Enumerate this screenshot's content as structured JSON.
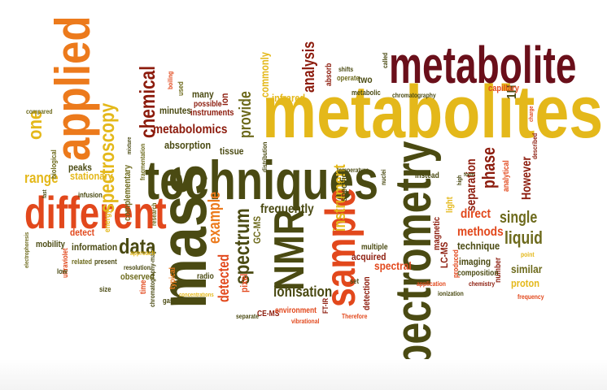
{
  "cloud": {
    "colors": {
      "dark_olive": "#4a4a12",
      "olive": "#6d6a1c",
      "gold": "#e4b81a",
      "orange": "#ec7a1c",
      "red_orange": "#e2481c",
      "dark_red": "#8c1b0c",
      "maroon": "#6a0f1a"
    },
    "words": [
      {
        "text": "metabolites",
        "color": "#e4b81a"
      },
      {
        "text": "techniques",
        "color": "#4a4a12"
      },
      {
        "text": "mass",
        "color": "#4a4a12"
      },
      {
        "text": "spectrometry",
        "color": "#4a4a12"
      },
      {
        "text": "metabolite",
        "color": "#6a0f1a"
      },
      {
        "text": "different",
        "color": "#e2481c"
      },
      {
        "text": "applied",
        "color": "#ec7a1c"
      },
      {
        "text": "sample",
        "color": "#e2481c"
      },
      {
        "text": "NMR",
        "color": "#4a4a12"
      },
      {
        "text": "spectroscopy",
        "color": "#e4b81a"
      },
      {
        "text": "chemical",
        "color": "#8c1b0c"
      },
      {
        "text": "spectrum",
        "color": "#4a4a12"
      },
      {
        "text": "data",
        "color": "#4a4a12"
      },
      {
        "text": "one",
        "color": "#e4b81a"
      },
      {
        "text": "range",
        "color": "#e4b81a"
      },
      {
        "text": "metabolomics",
        "color": "#8c1b0c"
      },
      {
        "text": "instrument",
        "color": "#e4b81a"
      },
      {
        "text": "analysis",
        "color": "#8c1b0c"
      },
      {
        "text": "provide",
        "color": "#6d6a1c"
      },
      {
        "text": "liquid",
        "color": "#6d6a1c"
      },
      {
        "text": "single",
        "color": "#6d6a1c"
      },
      {
        "text": "phase",
        "color": "#8c1b0c"
      },
      {
        "text": "separation",
        "color": "#8c1b0c"
      },
      {
        "text": "However",
        "color": "#8c1b0c"
      },
      {
        "text": "example",
        "color": "#ec7a1c"
      },
      {
        "text": "frequently",
        "color": "#4a4a12"
      },
      {
        "text": "ionisation",
        "color": "#4a4a12"
      },
      {
        "text": "detected",
        "color": "#e2481c"
      },
      {
        "text": "complementary",
        "color": "#6d6a1c"
      },
      {
        "text": "stationary",
        "color": "#e4b81a"
      },
      {
        "text": "absorption",
        "color": "#4a4a12"
      },
      {
        "text": "methods",
        "color": "#e2481c"
      },
      {
        "text": "direct",
        "color": "#e2481c"
      },
      {
        "text": "technique",
        "color": "#4a4a12"
      },
      {
        "text": "spectral",
        "color": "#e2481c"
      },
      {
        "text": "acquired",
        "color": "#8c1b0c"
      },
      {
        "text": "imaging",
        "color": "#4a4a12"
      },
      {
        "text": "similar",
        "color": "#6d6a1c"
      },
      {
        "text": "proton",
        "color": "#e4b81a"
      },
      {
        "text": "infrared",
        "color": "#e4b81a"
      },
      {
        "text": "commonly",
        "color": "#e4b81a"
      },
      {
        "text": "peaks",
        "color": "#4a4a12"
      },
      {
        "text": "detect",
        "color": "#e2481c"
      },
      {
        "text": "information",
        "color": "#4a4a12"
      },
      {
        "text": "mobility",
        "color": "#4a4a12"
      },
      {
        "text": "observed",
        "color": "#6d6a1c"
      },
      {
        "text": "pixel",
        "color": "#e2481c"
      },
      {
        "text": "GC-MS",
        "color": "#6d6a1c"
      },
      {
        "text": "CE-MS",
        "color": "#8c1b0c"
      },
      {
        "text": "LC-MS",
        "color": "#8c1b0c"
      },
      {
        "text": "environment",
        "color": "#e2481c"
      },
      {
        "text": "detection",
        "color": "#8c1b0c"
      },
      {
        "text": "tissue",
        "color": "#4a4a12"
      },
      {
        "text": "minutes",
        "color": "#4a4a12"
      },
      {
        "text": "instruments",
        "color": "#8c1b0c"
      },
      {
        "text": "possible",
        "color": "#8c1b0c"
      },
      {
        "text": "many",
        "color": "#4a4a12"
      },
      {
        "text": "ion",
        "color": "#8c1b0c"
      },
      {
        "text": "two",
        "color": "#4a4a12"
      },
      {
        "text": "1H",
        "color": "#4a4a12"
      },
      {
        "text": "capillary",
        "color": "#e2481c"
      },
      {
        "text": "magnetic",
        "color": "#8c1b0c"
      },
      {
        "text": "light",
        "color": "#e4b81a"
      },
      {
        "text": "specific",
        "color": "#4a4a12"
      },
      {
        "text": "multiple",
        "color": "#4a4a12"
      },
      {
        "text": "energy",
        "color": "#e4b81a"
      },
      {
        "text": "time",
        "color": "#e2481c"
      },
      {
        "text": "typical",
        "color": "#ec7a1c"
      },
      {
        "text": "radio",
        "color": "#4a4a12"
      },
      {
        "text": "number",
        "color": "#8c1b0c"
      },
      {
        "text": "composition",
        "color": "#4a4a12"
      },
      {
        "text": "produced",
        "color": "#e2481c"
      },
      {
        "text": "FT-IR",
        "color": "#8c1b0c"
      },
      {
        "text": "operate",
        "color": "#6d6a1c"
      },
      {
        "text": "absorb",
        "color": "#8c1b0c"
      },
      {
        "text": "metabolic",
        "color": "#4a4a12"
      },
      {
        "text": "instead",
        "color": "#4a4a12"
      },
      {
        "text": "used",
        "color": "#6d6a1c"
      },
      {
        "text": "infusion",
        "color": "#4a4a12"
      },
      {
        "text": "biological",
        "color": "#6d6a1c"
      },
      {
        "text": "ultraviolet",
        "color": "#e2481c"
      },
      {
        "text": "related",
        "color": "#6d6a1c"
      },
      {
        "text": "low",
        "color": "#4a4a12"
      },
      {
        "text": "present",
        "color": "#4a4a12"
      },
      {
        "text": "size",
        "color": "#4a4a12"
      },
      {
        "text": "gas",
        "color": "#4a4a12"
      },
      {
        "text": "chromatography-mass",
        "color": "#4a4a12"
      },
      {
        "text": "set",
        "color": "#4a4a12"
      },
      {
        "text": "described",
        "color": "#8c1b0c"
      },
      {
        "text": "distribution",
        "color": "#4a4a12"
      },
      {
        "text": "Therefore",
        "color": "#e2481c"
      },
      {
        "text": "separate",
        "color": "#4a4a12"
      },
      {
        "text": "vibrational",
        "color": "#e2481c"
      },
      {
        "text": "frequency",
        "color": "#e2481c"
      },
      {
        "text": "chemistry",
        "color": "#8c1b0c"
      },
      {
        "text": "ionization",
        "color": "#4a4a12"
      },
      {
        "text": "point",
        "color": "#e4b81a"
      },
      {
        "text": "application",
        "color": "#e2481c"
      },
      {
        "text": "resolution",
        "color": "#4a4a12"
      },
      {
        "text": "compared",
        "color": "#6d6a1c"
      },
      {
        "text": "boiling",
        "color": "#e2481c"
      },
      {
        "text": "chromatography",
        "color": "#4a4a12"
      },
      {
        "text": "shifts",
        "color": "#4a4a12"
      },
      {
        "text": "called",
        "color": "#4a4a12"
      },
      {
        "text": "nuclei",
        "color": "#4a4a12"
      },
      {
        "text": "temperature",
        "color": "#4a4a12"
      },
      {
        "text": "approach",
        "color": "#e4b81a"
      },
      {
        "text": "fragmentation",
        "color": "#6d6a1c"
      },
      {
        "text": "research",
        "color": "#6d6a1c"
      },
      {
        "text": "concentrations",
        "color": "#e4b81a"
      },
      {
        "text": "electrophoresis",
        "color": "#6d6a1c"
      },
      {
        "text": "mixture",
        "color": "#4a4a12"
      },
      {
        "text": "fast",
        "color": "#4a4a12"
      },
      {
        "text": "analytical",
        "color": "#e2481c"
      },
      {
        "text": "form",
        "color": "#4a4a12"
      },
      {
        "text": "high",
        "color": "#4a4a12"
      },
      {
        "text": "charge",
        "color": "#e2481c"
      }
    ]
  }
}
